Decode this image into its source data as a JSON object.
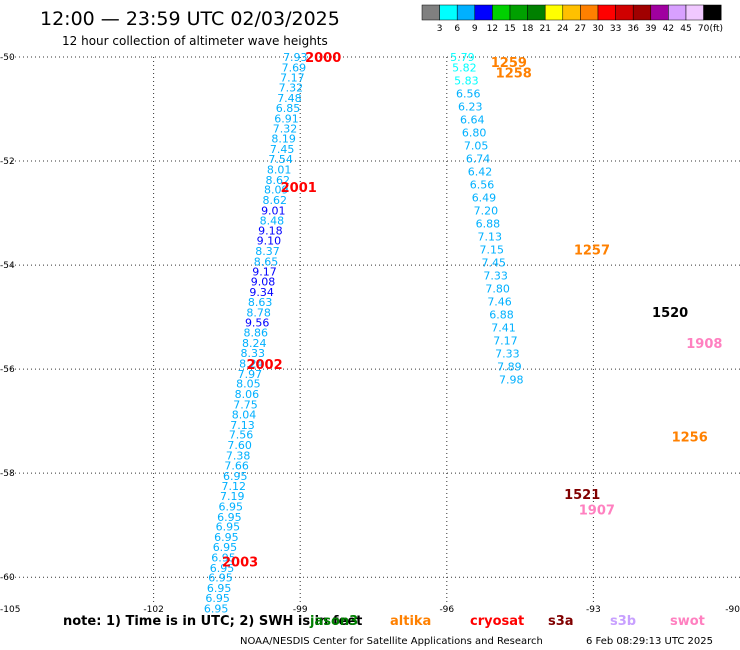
{
  "chart_data": {
    "type": "scatter",
    "title": "12:00 — 23:59 UTC 02/03/2025",
    "subtitle": "12 hour collection of altimeter wave heights",
    "x_axis": {
      "range": [
        -105,
        -90
      ],
      "ticks": [
        -105,
        -102,
        -99,
        -96,
        -93,
        -90
      ],
      "tick_labels": [
        "-105",
        "-102",
        "-99",
        "-96",
        "-93",
        "-90"
      ]
    },
    "y_axis": {
      "range": [
        -60.4,
        -50
      ],
      "ticks": [
        -50,
        -52,
        -54,
        -56,
        -58,
        -60
      ],
      "tick_labels": [
        "-50",
        "-52",
        "-54",
        "-56",
        "-58",
        "-60"
      ]
    },
    "grid": "dotted",
    "color_scale": {
      "unit_label": "(ft)",
      "thresholds": [
        0,
        3,
        6,
        9,
        12,
        15,
        18,
        21,
        24,
        27,
        30,
        33,
        36,
        39,
        42,
        45,
        70
      ],
      "labels": [
        "3",
        "6",
        "9",
        "12",
        "15",
        "18",
        "21",
        "24",
        "27",
        "30",
        "33",
        "36",
        "39",
        "42",
        "45",
        "70"
      ],
      "colors": [
        "#808080",
        "#00ffff",
        "#00b0ff",
        "#0000ff",
        "#00d000",
        "#00a000",
        "#008000",
        "#ffff00",
        "#ffc000",
        "#ff8000",
        "#ff0000",
        "#d00000",
        "#a00000",
        "#a000a0",
        "#d8a0ff",
        "#f0c8ff",
        "#000000"
      ]
    },
    "tracks": [
      {
        "id": "A",
        "x": [
          -99.1,
          -99.13,
          -99.16,
          -99.19,
          -99.22,
          -99.25,
          -99.28,
          -99.31,
          -99.34,
          -99.37,
          -99.4,
          -99.43,
          -99.46,
          -99.49,
          -99.52,
          -99.55,
          -99.58,
          -99.61,
          -99.64,
          -99.67,
          -99.7,
          -99.73,
          -99.76,
          -99.79,
          -99.82,
          -99.85,
          -99.88,
          -99.91,
          -99.94,
          -99.97,
          -100.0,
          -100.03,
          -100.06,
          -100.09,
          -100.12,
          -100.15,
          -100.18,
          -100.21,
          -100.24,
          -100.27,
          -100.3,
          -100.33,
          -100.36,
          -100.39,
          -100.42,
          -100.45,
          -100.48,
          -100.51,
          -100.54,
          -100.57,
          -100.6,
          -100.63,
          -100.66,
          -100.69,
          -100.72
        ],
        "y": [
          -50.0,
          -50.2,
          -50.39,
          -50.59,
          -50.79,
          -50.98,
          -51.18,
          -51.37,
          -51.57,
          -51.77,
          -51.96,
          -52.16,
          -52.36,
          -52.55,
          -52.75,
          -52.95,
          -53.14,
          -53.34,
          -53.53,
          -53.73,
          -53.93,
          -54.12,
          -54.32,
          -54.52,
          -54.71,
          -54.91,
          -55.1,
          -55.3,
          -55.5,
          -55.69,
          -55.89,
          -56.09,
          -56.28,
          -56.48,
          -56.68,
          -56.87,
          -57.07,
          -57.26,
          -57.46,
          -57.66,
          -57.85,
          -58.05,
          -58.25,
          -58.44,
          -58.64,
          -58.84,
          -59.03,
          -59.23,
          -59.42,
          -59.62,
          -59.82,
          -60.01,
          -60.21,
          -60.4,
          -60.6
        ],
        "values": [
          7.93,
          7.69,
          7.17,
          7.32,
          7.48,
          6.85,
          6.91,
          7.32,
          8.19,
          7.45,
          7.54,
          8.01,
          8.62,
          8.09,
          8.62,
          9.01,
          8.48,
          9.18,
          9.1,
          8.37,
          8.65,
          9.17,
          9.08,
          9.34,
          8.63,
          8.78,
          9.56,
          8.86,
          8.24,
          8.33,
          8.24,
          7.97,
          8.05,
          8.06,
          7.75,
          8.04,
          7.13,
          7.56,
          7.6,
          7.38,
          7.66,
          6.95,
          7.12,
          7.19,
          6.95,
          6.95,
          6.95,
          6.95,
          6.95,
          6.95,
          6.95,
          6.95,
          6.95,
          6.95,
          6.95
        ]
      },
      {
        "id": "B",
        "x": [
          -95.68,
          -95.64,
          -95.6,
          -95.56,
          -95.52,
          -95.48,
          -95.44,
          -95.4,
          -95.36,
          -95.32,
          -95.28,
          -95.24,
          -95.2,
          -95.16,
          -95.12,
          -95.08,
          -95.04,
          -95.0,
          -94.96,
          -94.92,
          -94.88,
          -94.84,
          -94.8,
          -94.76,
          -94.72,
          -94.68
        ],
        "y": [
          -50.0,
          -50.2,
          -50.45,
          -50.7,
          -50.95,
          -51.2,
          -51.45,
          -51.7,
          -51.95,
          -52.2,
          -52.45,
          -52.7,
          -52.95,
          -53.2,
          -53.45,
          -53.7,
          -53.95,
          -54.2,
          -54.45,
          -54.7,
          -54.95,
          -55.2,
          -55.45,
          -55.7,
          -55.95,
          -56.2
        ],
        "values": [
          5.79,
          5.82,
          5.83,
          6.56,
          6.23,
          6.64,
          6.8,
          7.05,
          6.74,
          6.42,
          6.56,
          6.49,
          7.2,
          6.88,
          7.13,
          7.15,
          7.45,
          7.33,
          7.8,
          7.46,
          6.88,
          7.41,
          7.17,
          7.33,
          7.89,
          7.98
        ]
      }
    ],
    "pass_labels": [
      {
        "text": "2000",
        "x": -98.9,
        "y": -50.0,
        "color": "#ff0000"
      },
      {
        "text": "2001",
        "x": -99.4,
        "y": -52.5,
        "color": "#ff0000"
      },
      {
        "text": "2002",
        "x": -100.1,
        "y": -55.9,
        "color": "#ff0000"
      },
      {
        "text": "2003",
        "x": -100.6,
        "y": -59.7,
        "color": "#ff0000"
      },
      {
        "text": "1259",
        "x": -95.1,
        "y": -50.1,
        "color": "#ff8000"
      },
      {
        "text": "1258",
        "x": -95.0,
        "y": -50.3,
        "color": "#ff8000"
      },
      {
        "text": "1257",
        "x": -93.4,
        "y": -53.7,
        "color": "#ff8000"
      },
      {
        "text": "1256",
        "x": -91.4,
        "y": -57.3,
        "color": "#ff8000"
      },
      {
        "text": "1520",
        "x": -91.8,
        "y": -54.9,
        "color": "#000000"
      },
      {
        "text": "1521",
        "x": -93.6,
        "y": -58.4,
        "color": "#800000"
      },
      {
        "text": "1908",
        "x": -91.1,
        "y": -55.5,
        "color": "#ff80c0"
      },
      {
        "text": "1907",
        "x": -93.3,
        "y": -58.7,
        "color": "#ff80c0"
      }
    ]
  },
  "footer": {
    "note": "note:  1) Time is in UTC;  2) SWH is in feet",
    "missions": [
      {
        "name": "jason3",
        "color": "#008000"
      },
      {
        "name": "altika",
        "color": "#ff8000"
      },
      {
        "name": "cryosat",
        "color": "#ff0000"
      },
      {
        "name": "s3a",
        "color": "#800000"
      },
      {
        "name": "s3b",
        "color": "#c8a0ff"
      },
      {
        "name": "swot",
        "color": "#ff80c0"
      }
    ],
    "credit": "NOAA/NESDIS Center for Satellite Applications and Research",
    "timestamp": "6 Feb 08:29:13 UTC 2025"
  }
}
